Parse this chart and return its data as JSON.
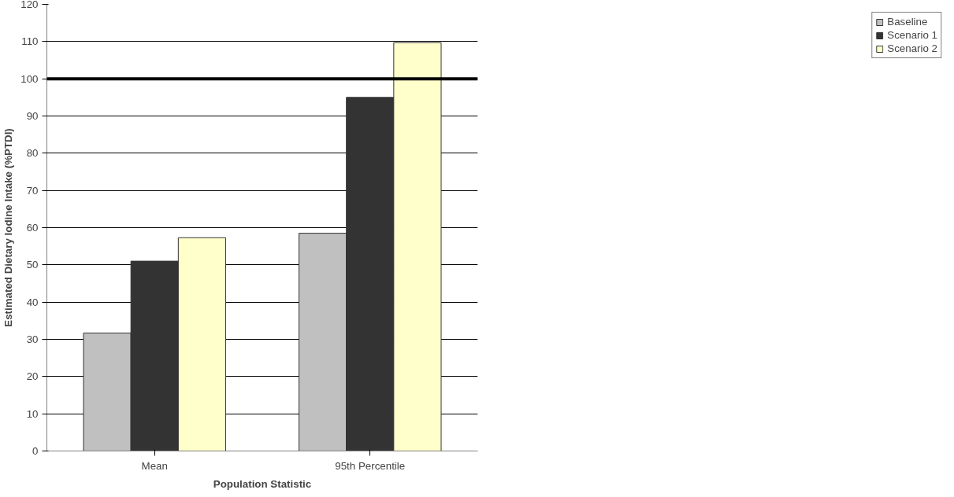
{
  "chart_data": {
    "type": "bar",
    "xlabel": "Population Statistic",
    "ylabel": "Estimated Dietary Iodine Intake (%PTDI)",
    "categories": [
      "Mean",
      "95th Percentile"
    ],
    "series": [
      {
        "name": "Baseline",
        "color": "#c0c0c0",
        "values": [
          31.7,
          58.5
        ]
      },
      {
        "name": "Scenario 1",
        "color": "#333333",
        "values": [
          51,
          95
        ]
      },
      {
        "name": "Scenario 2",
        "color": "#ffffcc",
        "values": [
          57.3,
          109.7
        ]
      }
    ],
    "ylim": [
      0,
      120
    ],
    "yticks": [
      0,
      10,
      20,
      30,
      40,
      50,
      60,
      70,
      80,
      90,
      100,
      110,
      120
    ],
    "ref_lines": [
      {
        "axis": "y",
        "value": 100,
        "color": "#000000"
      }
    ],
    "grid": "y",
    "legend": "right"
  }
}
